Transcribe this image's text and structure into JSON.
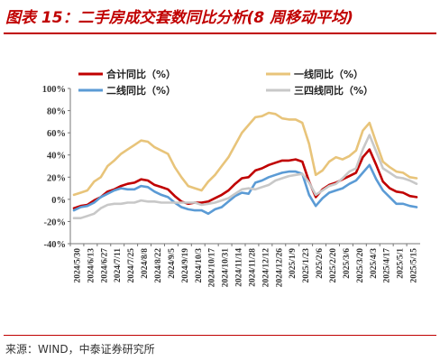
{
  "title": "图表 15：二手房成交套数同比分析(8 周移动平均)",
  "source": "来源：WIND，中泰证券研究所",
  "chart_data": {
    "type": "line",
    "title": "图表 15：二手房成交套数同比分析(8 周移动平均)",
    "xlabel": "",
    "ylabel": "",
    "ylim": [
      -40,
      100
    ],
    "yticks": [
      -40,
      -20,
      0,
      20,
      40,
      60,
      80,
      100
    ],
    "ytick_labels": [
      "-40%",
      "-20%",
      "0%",
      "20%",
      "40%",
      "60%",
      "80%",
      "100%"
    ],
    "x_tick_labels": [
      "2024/5/30",
      "2024/6/13",
      "2024/6/27",
      "2024/7/11",
      "2024/7/25",
      "2024/8/8",
      "2024/8/22",
      "2024/9/5",
      "2024/9/19",
      "2024/10/3",
      "2024/10/17",
      "2024/10/31",
      "2024/11/14",
      "2024/11/28",
      "2024/12/12",
      "2024/12/26",
      "2025/1/9",
      "2025/1/23",
      "2025/2/6",
      "2025/2/20",
      "2025/3/6",
      "2025/3/20",
      "2025/4/3",
      "2025/4/17",
      "2025/5/1",
      "2025/5/15"
    ],
    "grid": false,
    "legend_position": "top",
    "series": [
      {
        "name": "合计同比（%）",
        "color": "#c00000",
        "values": [
          -8,
          -6,
          -5,
          -1,
          2,
          7,
          9,
          12,
          14,
          15,
          18,
          17,
          13,
          11,
          9,
          3,
          -2,
          -4,
          -3,
          -3,
          -2,
          1,
          4,
          8,
          14,
          19,
          20,
          26,
          28,
          31,
          33,
          35,
          35,
          36,
          34,
          16,
          2,
          9,
          13,
          15,
          18,
          21,
          24,
          38,
          45,
          31,
          16,
          10,
          7,
          6,
          3,
          2
        ]
      },
      {
        "name": "一线同比（%）",
        "color": "#e8c47a",
        "values": [
          4,
          6,
          8,
          16,
          20,
          30,
          35,
          41,
          45,
          49,
          53,
          52,
          47,
          44,
          41,
          29,
          20,
          12,
          10,
          8,
          16,
          22,
          30,
          38,
          49,
          60,
          67,
          74,
          75,
          78,
          77,
          73,
          72,
          72,
          69,
          50,
          22,
          26,
          34,
          38,
          36,
          39,
          44,
          62,
          69,
          51,
          34,
          29,
          25,
          24,
          20,
          19
        ]
      },
      {
        "name": "二线同比（%）",
        "color": "#5b9bd5",
        "values": [
          -10,
          -7,
          -6,
          -3,
          2,
          5,
          8,
          10,
          9,
          9,
          12,
          11,
          7,
          4,
          2,
          -3,
          -7,
          -9,
          -10,
          -10,
          -13,
          -9,
          -7,
          -2,
          3,
          6,
          5,
          15,
          17,
          20,
          22,
          24,
          25,
          25,
          23,
          4,
          -6,
          1,
          6,
          8,
          10,
          14,
          17,
          24,
          31,
          18,
          8,
          2,
          -4,
          -4,
          -6,
          -7
        ]
      },
      {
        "name": "三四线同比（%）",
        "color": "#c8c8c8",
        "values": [
          -17,
          -17,
          -15,
          -13,
          -8,
          -5,
          -4,
          -4,
          -3,
          -3,
          -1,
          -2,
          -2,
          -3,
          -3,
          -3,
          -3,
          -3,
          -3,
          -5,
          -4,
          -3,
          -1,
          1,
          5,
          9,
          10,
          9,
          11,
          13,
          17,
          19,
          21,
          22,
          23,
          15,
          4,
          8,
          12,
          14,
          19,
          25,
          28,
          45,
          58,
          43,
          28,
          24,
          20,
          19,
          17,
          14
        ]
      }
    ]
  }
}
